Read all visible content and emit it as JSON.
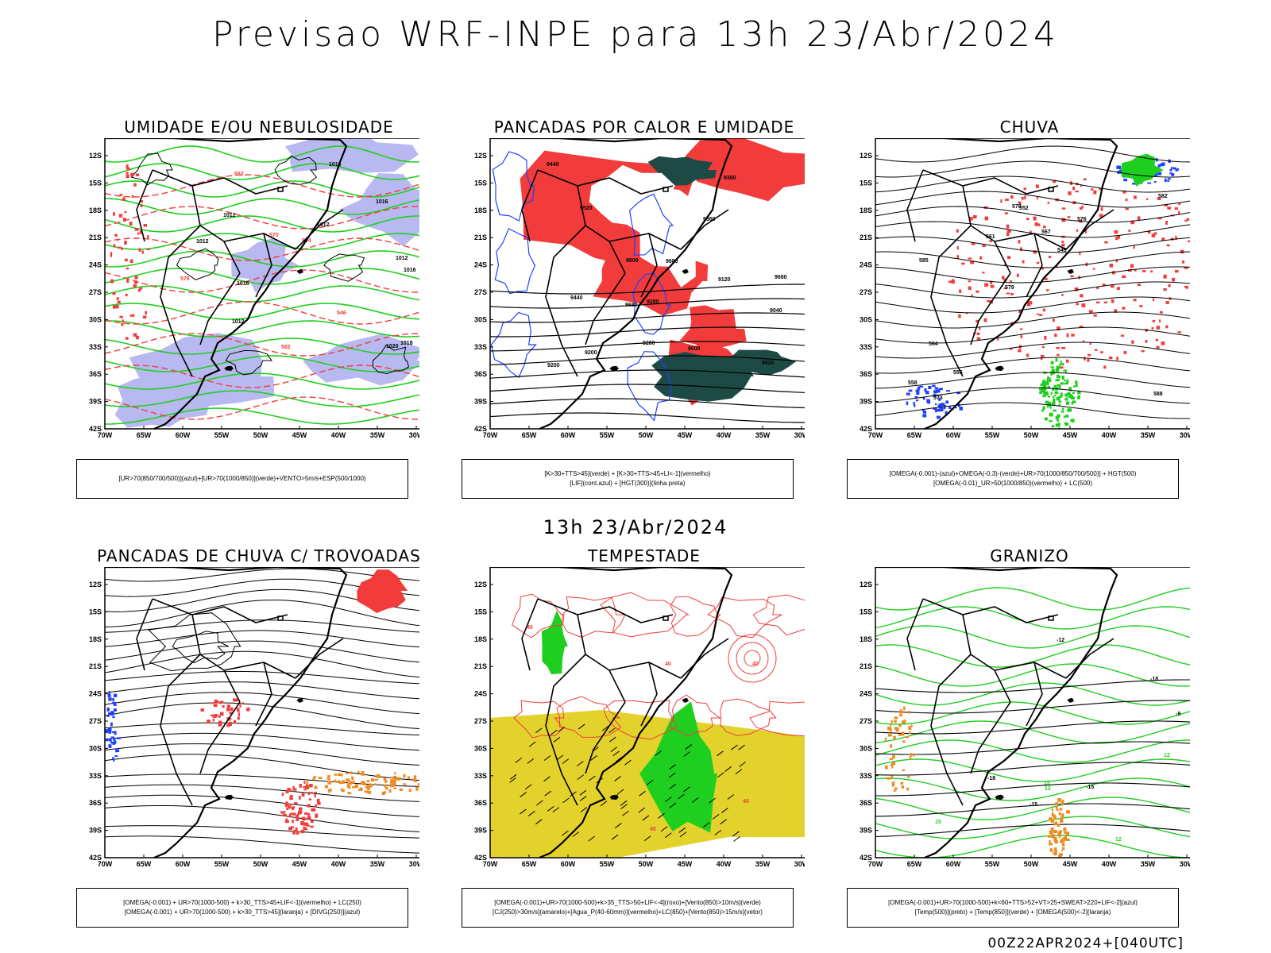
{
  "main_title": "Previsao WRF-INPE  para 13h 23/Abr/2024",
  "mid_title": "13h 23/Abr/2024",
  "footer": "00Z22APR2024+[040UTC]",
  "axes": {
    "y_labels": [
      "12S",
      "15S",
      "18S",
      "21S",
      "24S",
      "27S",
      "30S",
      "33S",
      "36S",
      "39S",
      "42S"
    ],
    "x_labels": [
      "70W",
      "65W",
      "60W",
      "55W",
      "50W",
      "45W",
      "40W",
      "35W",
      "30W"
    ]
  },
  "colors": {
    "red": "#f23c3c",
    "green": "#1fcf1f",
    "blue": "#2040ff",
    "lavender": "#b9b9f2",
    "dark_green": "#1e4a46",
    "yellow": "#e3d22c",
    "orange": "#f08a20"
  },
  "panels": [
    {
      "title": "UMIDADE E/OU NEBULOSIDADE",
      "legend": [
        "[UR>70(850/700/500)](azul)+[UR>70(1000/850)](verde)+VENTO>5m/s+ESP(500/1000)"
      ],
      "labels": [
        "1012",
        "1012",
        "1012",
        "1016",
        "1016",
        "1018",
        "1012",
        "1016",
        "1020",
        "1016",
        "1012",
        "552",
        "546",
        "564",
        "570",
        "576",
        "582"
      ]
    },
    {
      "title": "PANCADAS POR CALOR E UMIDADE",
      "legend": [
        "[K>30+TTS>45](verde)  +  [K>30+TTS>45+LI<-1](vermelho)",
        "[LIF](cont.azul)  +  [HGT(300)](linha preta)"
      ],
      "labels": [
        "9680",
        "9680",
        "9680",
        "9600",
        "9600",
        "9520",
        "9520",
        "9440",
        "9440",
        "9360",
        "9360",
        "9280",
        "9280",
        "9200",
        "9200",
        "9120",
        "9040"
      ]
    },
    {
      "title": "CHUVA",
      "legend": [
        "[OMEGA(-0.001)-(azul)+OMEGA(-0.3)-(verde)+UR>70(1000/850/700/500)]  +  HGT(500)",
        "[OMEGA(-0.01)_UR>50(1000/850)(vermelho) + LC(500)"
      ],
      "labels": [
        "588",
        "585",
        "582",
        "579",
        "576",
        "573",
        "570",
        "567",
        "564",
        "561",
        "558",
        "555",
        "552",
        "549"
      ]
    },
    {
      "title": "PANCADAS DE CHUVA C/ TROVOADAS",
      "legend": [
        "[OMEGA(-0.001) + UR>70(1000-500) + k>30_TTS>45+LIF<-1](vermelho) + LC(250)",
        "[OMEGA(-0.001) + UR>70(1000-500) + k>30_TTS>45](laranja) + [DIVG(250)](azul)"
      ],
      "labels": []
    },
    {
      "title": "TEMPESTADE",
      "legend": [
        "[OMEGA(-0.001)+UR>70(1000-500)+k>35_TTS>50+LIF<-4](roxo)+[Vento(850)>10m/s](verde)",
        "[CJ(250)>30m/s](amarelo)+[Agua_P(40-60mm)](vermelho)+LC(850)+[Vento(850)>15m/s](vetor)"
      ],
      "labels": [
        "40",
        "40",
        "40",
        "40",
        "40"
      ]
    },
    {
      "title": "GRANIZO",
      "legend": [
        "[OMEGA(-0.001)+UR>70(1000-500)+k<60+TTS>52+VT>25+SWEAT>220+LIF<-2](azul)",
        "[Temp(500)](preto) + [Temp(850)](verde) + [OMEGA(500)<-2](laranja)"
      ],
      "labels": [
        "12",
        "12",
        "12",
        "15",
        "15",
        "-9",
        "-12",
        "-15",
        "-15",
        "-18",
        "-18"
      ]
    }
  ]
}
